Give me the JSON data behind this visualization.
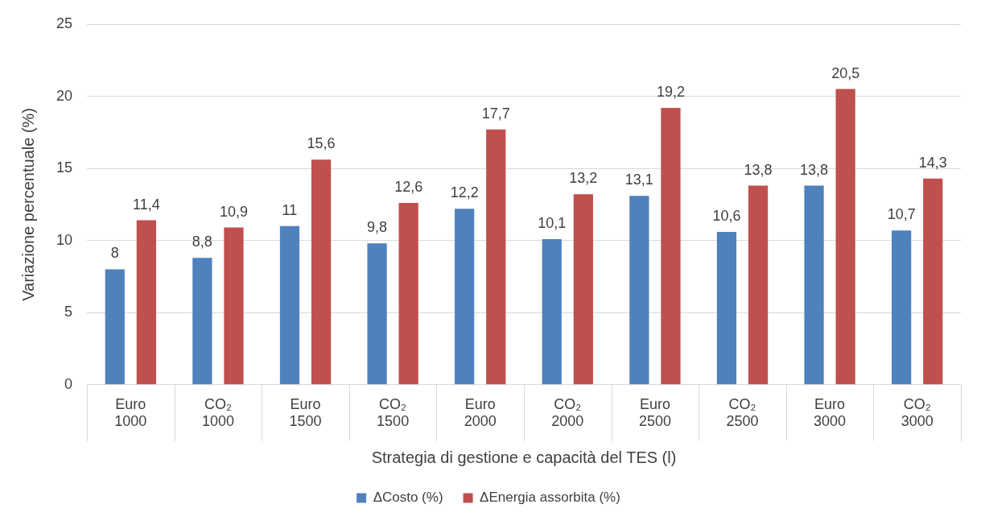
{
  "chart_data": {
    "type": "bar",
    "xlabel": "Strategia di gestione e capacità del TES (l)",
    "ylabel": "Variazione percentuale (%)",
    "categories": [
      "Euro\n1000",
      "CO₂\n1000",
      "Euro\n1500",
      "CO₂\n1500",
      "Euro\n2000",
      "CO₂\n2000",
      "Euro\n2500",
      "CO₂\n2500",
      "Euro\n3000",
      "CO₂\n3000"
    ],
    "series": [
      {
        "name": "ΔCosto (%)",
        "color": "#4f81bd",
        "values": [
          8,
          8.8,
          11,
          9.8,
          12.2,
          10.1,
          13.1,
          10.6,
          13.8,
          10.7
        ],
        "value_labels": [
          "8",
          "8,8",
          "11",
          "9,8",
          "12,2",
          "10,1",
          "13,1",
          "10,6",
          "13,8",
          "10,7"
        ]
      },
      {
        "name": "ΔEnergia assorbita (%)",
        "color": "#c0504d",
        "values": [
          11.4,
          10.9,
          15.6,
          12.6,
          17.7,
          13.2,
          19.2,
          13.8,
          20.5,
          14.3
        ],
        "value_labels": [
          "11,4",
          "10,9",
          "15,6",
          "12,6",
          "17,7",
          "13,2",
          "19,2",
          "13,8",
          "20,5",
          "14,3"
        ]
      }
    ],
    "ylim": [
      0,
      25
    ],
    "yticks": [
      0,
      5,
      10,
      15,
      20,
      25
    ],
    "grid": "y",
    "legend": "bottom"
  }
}
